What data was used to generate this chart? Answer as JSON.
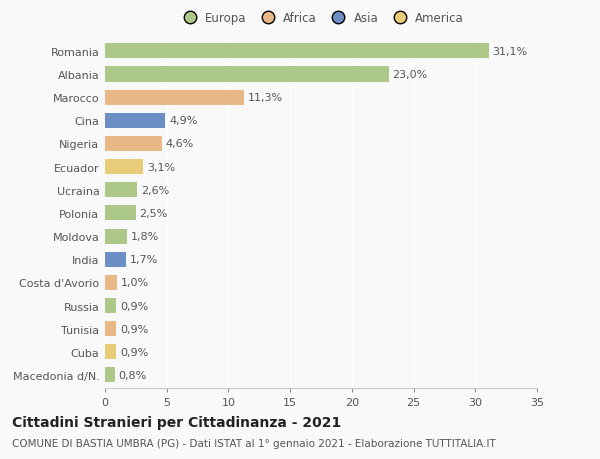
{
  "countries": [
    "Romania",
    "Albania",
    "Marocco",
    "Cina",
    "Nigeria",
    "Ecuador",
    "Ucraina",
    "Polonia",
    "Moldova",
    "India",
    "Costa d'Avorio",
    "Russia",
    "Tunisia",
    "Cuba",
    "Macedonia d/N."
  ],
  "values": [
    31.1,
    23.0,
    11.3,
    4.9,
    4.6,
    3.1,
    2.6,
    2.5,
    1.8,
    1.7,
    1.0,
    0.9,
    0.9,
    0.9,
    0.8
  ],
  "labels": [
    "31,1%",
    "23,0%",
    "11,3%",
    "4,9%",
    "4,6%",
    "3,1%",
    "2,6%",
    "2,5%",
    "1,8%",
    "1,7%",
    "1,0%",
    "0,9%",
    "0,9%",
    "0,9%",
    "0,8%"
  ],
  "continents": [
    "Europa",
    "Europa",
    "Africa",
    "Asia",
    "Africa",
    "America",
    "Europa",
    "Europa",
    "Europa",
    "Asia",
    "Africa",
    "Europa",
    "Africa",
    "America",
    "Europa"
  ],
  "continent_colors": {
    "Europa": "#adc98a",
    "Africa": "#e8b887",
    "Asia": "#6b8fc4",
    "America": "#e8cc7a"
  },
  "legend_items": [
    "Europa",
    "Africa",
    "Asia",
    "America"
  ],
  "legend_colors": [
    "#adc98a",
    "#e8b887",
    "#6b8fc4",
    "#e8cc7a"
  ],
  "xlim": [
    0,
    35
  ],
  "xticks": [
    0,
    5,
    10,
    15,
    20,
    25,
    30,
    35
  ],
  "title": "Cittadini Stranieri per Cittadinanza - 2021",
  "subtitle": "COMUNE DI BASTIA UMBRA (PG) - Dati ISTAT al 1° gennaio 2021 - Elaborazione TUTTITALIA.IT",
  "background_color": "#f9f9f9",
  "bar_height": 0.65,
  "label_fontsize": 8,
  "ytick_fontsize": 8,
  "xtick_fontsize": 8,
  "title_fontsize": 10,
  "subtitle_fontsize": 7.5
}
